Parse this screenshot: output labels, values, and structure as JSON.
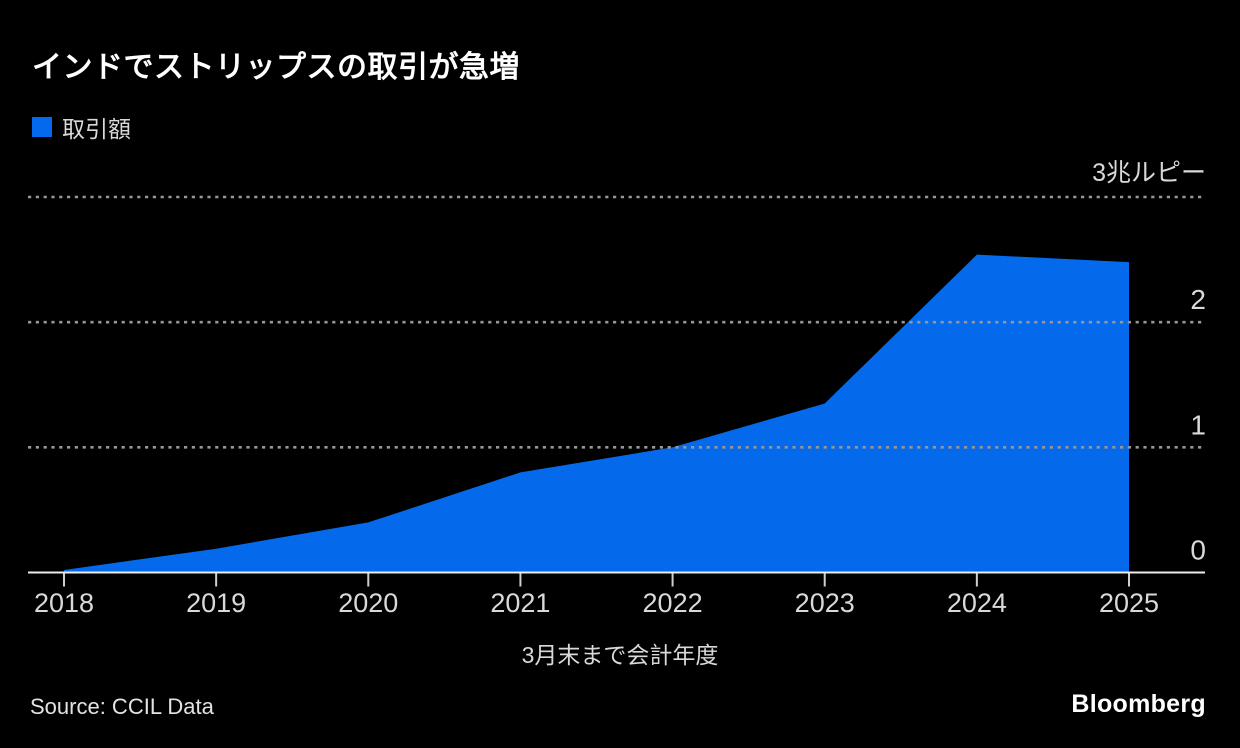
{
  "header": {
    "title": "インドでストリップスの取引が急増"
  },
  "legend": {
    "label": "取引額"
  },
  "colors": {
    "background": "#000000",
    "series_blue": "#0569eb",
    "gridline_gray": "#969696",
    "axis_line": "#ececec",
    "tick_mark": "#cfcfcf",
    "label_gray": "#d9d9d9",
    "title_white": "#ffffff"
  },
  "chart_data": {
    "type": "area",
    "title": "インドでストリップスの取引が急増",
    "series_name": "取引額",
    "x": [
      2018,
      2019,
      2020,
      2021,
      2022,
      2023,
      2024,
      2025
    ],
    "values": [
      0.02,
      0.19,
      0.4,
      0.8,
      1.0,
      1.35,
      2.54,
      2.48
    ],
    "unit": "兆ルピー",
    "xlabel": "3月末まで会計年度",
    "ylabel": "",
    "ylim": [
      0,
      3
    ],
    "y_ticks": [
      {
        "value": 3,
        "label": "3兆ルピー"
      },
      {
        "value": 2,
        "label": "2"
      },
      {
        "value": 1,
        "label": "1"
      },
      {
        "value": 0,
        "label": "0"
      }
    ],
    "grid": "horizontal dotted, labels right side, drawn over series",
    "legend_position": "top-left"
  },
  "footer": {
    "source": "Source: CCIL Data",
    "brand": "Bloomberg"
  }
}
